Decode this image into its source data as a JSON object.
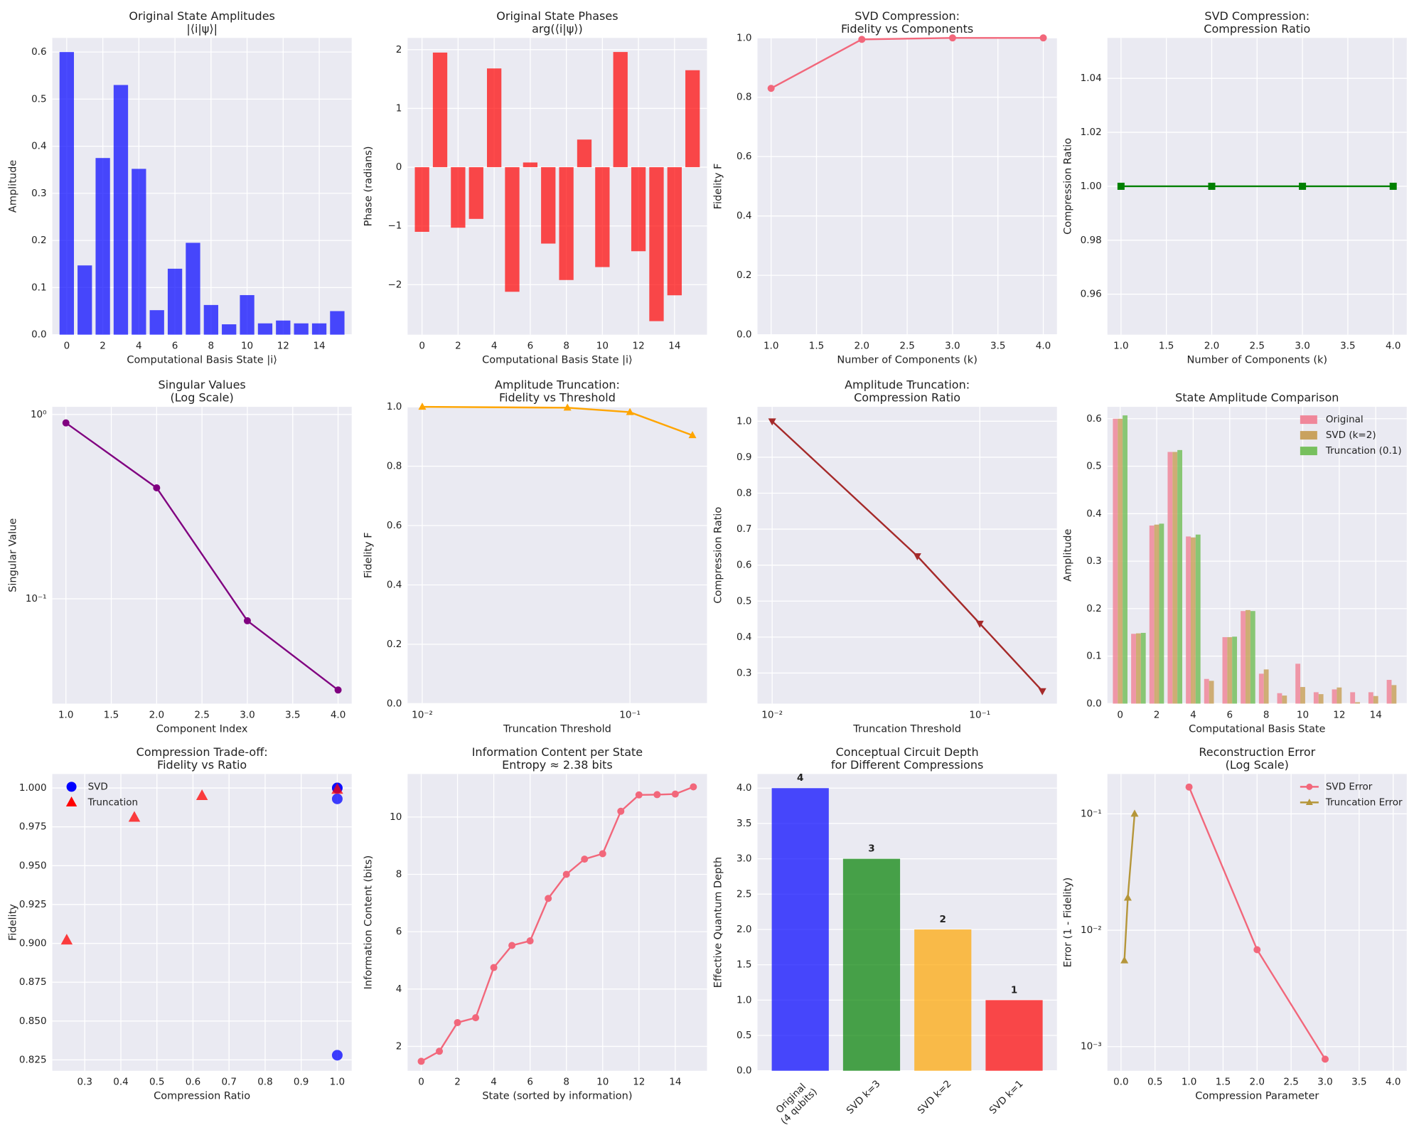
{
  "chart_data": [
    {
      "type": "bar",
      "title": [
        "Original State Amplitudes",
        "|⟨i|ψ⟩|"
      ],
      "xlabel": "Computational Basis State |i⟩",
      "ylabel": "Amplitude",
      "x": [
        0,
        1,
        2,
        3,
        4,
        5,
        6,
        7,
        8,
        9,
        10,
        11,
        12,
        13,
        14,
        15
      ],
      "values": [
        0.6,
        0.147,
        0.375,
        0.53,
        0.352,
        0.052,
        0.14,
        0.195,
        0.063,
        0.022,
        0.084,
        0.024,
        0.03,
        0.024,
        0.024,
        0.05
      ],
      "color": "#0000ff",
      "alpha": 0.7,
      "xlim": [
        -0.8,
        15.8
      ],
      "xticks": [
        0,
        2,
        4,
        6,
        8,
        10,
        12,
        14
      ],
      "ylim": [
        0,
        0.63
      ],
      "yticks": [
        {
          "value": 0,
          "label": "0.0"
        },
        0.1,
        0.2,
        0.3,
        0.4,
        0.5,
        0.6
      ],
      "grid": true
    },
    {
      "type": "bar",
      "title": [
        "Original State Phases",
        "arg(⟨i|ψ⟩)"
      ],
      "xlabel": "Computational Basis State |i⟩",
      "ylabel": "Phase (radians)",
      "x": [
        0,
        1,
        2,
        3,
        4,
        5,
        6,
        7,
        8,
        9,
        10,
        11,
        12,
        13,
        14,
        15
      ],
      "values": [
        -1.1,
        1.95,
        -1.03,
        -0.88,
        1.68,
        -2.12,
        0.08,
        -1.3,
        -1.92,
        0.47,
        -1.7,
        1.96,
        -1.43,
        -2.62,
        -2.18,
        1.65
      ],
      "color": "#ff0000",
      "alpha": 0.7,
      "xlim": [
        -0.8,
        15.8
      ],
      "xticks": [
        0,
        2,
        4,
        6,
        8,
        10,
        12,
        14
      ],
      "ylim": [
        -2.85,
        2.2
      ],
      "yticks": [
        {
          "value": -2,
          "label": "−2"
        },
        {
          "value": -1,
          "label": "−1"
        },
        0,
        1,
        2
      ],
      "grid": true
    },
    {
      "type": "line",
      "title": [
        "SVD Compression:",
        "Fidelity vs Components"
      ],
      "xlabel": "Number of Components (k)",
      "ylabel": "Fidelity F",
      "series": [
        {
          "color": "#f2677b",
          "marker": "o",
          "x": [
            1,
            2,
            3,
            4
          ],
          "values": [
            0.83,
            0.995,
            1.0,
            1.0
          ]
        }
      ],
      "xlim": [
        0.85,
        4.15
      ],
      "xticks": [
        {
          "value": 1,
          "label": "1.0"
        },
        1.5,
        {
          "value": 2,
          "label": "2.0"
        },
        2.5,
        {
          "value": 3,
          "label": "3.0"
        },
        3.5,
        {
          "value": 4,
          "label": "4.0"
        }
      ],
      "ylim": [
        0,
        1.0
      ],
      "yticks": [
        {
          "value": 0,
          "label": "0.0"
        },
        0.2,
        0.4,
        0.6,
        0.8,
        {
          "value": 1,
          "label": "1.0"
        }
      ],
      "grid": true
    },
    {
      "type": "line",
      "title": [
        "SVD Compression:",
        "Compression Ratio"
      ],
      "xlabel": "Number of Components (k)",
      "ylabel": "Compression Ratio",
      "series": [
        {
          "color": "#008000",
          "marker": "s",
          "x": [
            1,
            2,
            3,
            4
          ],
          "values": [
            1,
            1,
            1,
            1
          ]
        }
      ],
      "xlim": [
        0.85,
        4.15
      ],
      "xticks": [
        {
          "value": 1,
          "label": "1.0"
        },
        1.5,
        {
          "value": 2,
          "label": "2.0"
        },
        2.5,
        {
          "value": 3,
          "label": "3.0"
        },
        3.5,
        {
          "value": 4,
          "label": "4.0"
        }
      ],
      "ylim": [
        0.945,
        1.055
      ],
      "yticks": [
        0.96,
        0.98,
        {
          "value": 1,
          "label": "1.00"
        },
        1.02,
        1.04
      ],
      "grid": true
    },
    {
      "type": "line",
      "title": [
        "Singular Values",
        "(Log Scale)"
      ],
      "xlabel": "Component Index",
      "ylabel": "Singular Value",
      "yscale": "log",
      "series": [
        {
          "color": "#800080",
          "marker": "o",
          "x": [
            1,
            2,
            3,
            4
          ],
          "values": [
            0.9,
            0.4,
            0.076,
            0.032
          ]
        }
      ],
      "xlim": [
        0.85,
        4.15
      ],
      "xticks": [
        {
          "value": 1,
          "label": "1.0"
        },
        1.5,
        {
          "value": 2,
          "label": "2.0"
        },
        2.5,
        {
          "value": 3,
          "label": "3.0"
        },
        3.5,
        {
          "value": 4,
          "label": "4.0"
        }
      ],
      "ylim": [
        0.027,
        1.1
      ],
      "yticks": [
        {
          "value": 0.1,
          "label": "10⁻¹"
        },
        {
          "value": 1,
          "label": "10⁰"
        }
      ],
      "grid": true
    },
    {
      "type": "line",
      "title": [
        "Amplitude Truncation:",
        "Fidelity vs Threshold"
      ],
      "xlabel": "Truncation Threshold",
      "ylabel": "Fidelity F",
      "xscale": "log",
      "series": [
        {
          "color": "#ffa500",
          "marker": "^",
          "x": [
            0.01,
            0.05,
            0.1,
            0.2
          ],
          "values": [
            1.0,
            0.997,
            0.982,
            0.904
          ]
        }
      ],
      "xlim": [
        0.0085,
        0.235
      ],
      "xticks": [
        {
          "value": 0.01,
          "label": "10⁻²"
        },
        {
          "value": 0.1,
          "label": "10⁻¹"
        }
      ],
      "ylim": [
        0,
        1.0
      ],
      "yticks": [
        {
          "value": 0,
          "label": "0.0"
        },
        0.2,
        0.4,
        0.6,
        0.8,
        {
          "value": 1,
          "label": "1.0"
        }
      ],
      "grid": true
    },
    {
      "type": "line",
      "title": [
        "Amplitude Truncation:",
        "Compression Ratio"
      ],
      "xlabel": "Truncation Threshold",
      "ylabel": "Compression Ratio",
      "xscale": "log",
      "series": [
        {
          "color": "#a52a2a",
          "marker": "v",
          "x": [
            0.01,
            0.05,
            0.1,
            0.2
          ],
          "values": [
            1.0,
            0.625,
            0.4375,
            0.25
          ]
        }
      ],
      "xlim": [
        0.0085,
        0.235
      ],
      "xticks": [
        {
          "value": 0.01,
          "label": "10⁻²"
        },
        {
          "value": 0.1,
          "label": "10⁻¹"
        }
      ],
      "ylim": [
        0.215,
        1.04
      ],
      "yticks": [
        0.3,
        0.4,
        0.5,
        0.6,
        0.7,
        0.8,
        0.9,
        {
          "value": 1,
          "label": "1.0"
        }
      ],
      "grid": true
    },
    {
      "type": "grouped_bar",
      "title": [
        "State Amplitude Comparison"
      ],
      "xlabel": "Computational Basis State",
      "ylabel": "Amplitude",
      "legend": "upper right",
      "x": [
        0,
        1,
        2,
        3,
        4,
        5,
        6,
        7,
        8,
        9,
        10,
        11,
        12,
        13,
        14,
        15
      ],
      "series": [
        {
          "name": "Original",
          "color": "#f0879a",
          "values": [
            0.6,
            0.147,
            0.375,
            0.53,
            0.352,
            0.052,
            0.14,
            0.195,
            0.063,
            0.022,
            0.084,
            0.024,
            0.03,
            0.024,
            0.024,
            0.05
          ]
        },
        {
          "name": "SVD (k=2)",
          "color": "#c9a25e",
          "values": [
            0.6,
            0.148,
            0.377,
            0.53,
            0.35,
            0.048,
            0.14,
            0.197,
            0.072,
            0.017,
            0.035,
            0.02,
            0.034,
            0.003,
            0.016,
            0.039
          ]
        },
        {
          "name": "Truncation (0.1)",
          "color": "#77c05e",
          "values": [
            0.607,
            0.149,
            0.379,
            0.534,
            0.356,
            0,
            0.141,
            0.195,
            0,
            0,
            0,
            0,
            0,
            0,
            0,
            0
          ]
        }
      ],
      "xlim": [
        -0.7,
        15.7
      ],
      "xticks": [
        0,
        2,
        4,
        6,
        8,
        10,
        12,
        14
      ],
      "ylim": [
        0,
        0.625
      ],
      "yticks": [
        {
          "value": 0,
          "label": "0.0"
        },
        0.1,
        0.2,
        0.3,
        0.4,
        0.5,
        0.6
      ],
      "grid": true
    },
    {
      "type": "scatter",
      "title": [
        "Compression Trade-off:",
        "Fidelity vs Ratio"
      ],
      "xlabel": "Compression Ratio",
      "ylabel": "Fidelity",
      "legend": "upper left",
      "series": [
        {
          "name": "SVD",
          "color": "#0000ff",
          "marker": "o",
          "x": [
            1,
            1,
            1,
            1
          ],
          "values": [
            0.828,
            0.993,
            1.0,
            1.0
          ]
        },
        {
          "name": "Truncation",
          "color": "#ff0000",
          "marker": "^",
          "x": [
            1.0,
            0.625,
            0.4375,
            0.25
          ],
          "values": [
            0.999,
            0.995,
            0.981,
            0.902
          ]
        }
      ],
      "xlim": [
        0.21,
        1.04
      ],
      "xticks": [
        0.3,
        0.4,
        0.5,
        0.6,
        0.7,
        0.8,
        0.9,
        {
          "value": 1,
          "label": "1.0"
        }
      ],
      "ylim": [
        0.818,
        1.009
      ],
      "yticks": [
        0.825,
        {
          "value": 0.85,
          "label": "0.850"
        },
        0.875,
        {
          "value": 0.9,
          "label": "0.900"
        },
        0.925,
        {
          "value": 0.95,
          "label": "0.950"
        },
        0.975,
        {
          "value": 1,
          "label": "1.000"
        }
      ],
      "grid": true
    },
    {
      "type": "line",
      "title": [
        "Information Content per State",
        "Entropy ≈ 2.38 bits"
      ],
      "xlabel": "State (sorted by information)",
      "ylabel": "Information Content (bits)",
      "series": [
        {
          "color": "#f2677b",
          "marker": "o",
          "x": [
            0,
            1,
            2,
            3,
            4,
            5,
            6,
            7,
            8,
            9,
            10,
            11,
            12,
            13,
            14,
            15
          ],
          "values": [
            1.48,
            1.83,
            2.83,
            3.0,
            4.75,
            5.52,
            5.68,
            7.16,
            8.0,
            8.53,
            8.72,
            10.2,
            10.77,
            10.78,
            10.8,
            11.05
          ]
        }
      ],
      "xlim": [
        -0.75,
        15.75
      ],
      "xticks": [
        0,
        2,
        4,
        6,
        8,
        10,
        12,
        14
      ],
      "ylim": [
        1.15,
        11.5
      ],
      "yticks": [
        2,
        4,
        6,
        8,
        10
      ],
      "grid": true
    },
    {
      "type": "bar",
      "title": [
        "Conceptual Circuit Depth",
        "for Different Compressions"
      ],
      "ylabel": "Effective Quantum Depth",
      "categories": [
        "Original\n(4 qubits)",
        "SVD k=3",
        "SVD k=2",
        "SVD k=1"
      ],
      "values": [
        4,
        3,
        2,
        1
      ],
      "colors": [
        "#0000ff",
        "#008000",
        "#ffa500",
        "#ff0000"
      ],
      "alpha": 0.7,
      "value_labels_shown": true,
      "xlim": [
        -0.6,
        3.6
      ],
      "ylim": [
        0,
        4.2
      ],
      "yticks": [
        {
          "value": 0,
          "label": "0.0"
        },
        0.5,
        {
          "value": 1,
          "label": "1.0"
        },
        1.5,
        {
          "value": 2,
          "label": "2.0"
        },
        2.5,
        {
          "value": 3,
          "label": "3.0"
        },
        3.5,
        {
          "value": 4,
          "label": "4.0"
        }
      ],
      "grid": true
    },
    {
      "type": "line",
      "title": [
        "Reconstruction Error",
        "(Log Scale)"
      ],
      "xlabel": "Compression Parameter",
      "ylabel": "Error (1 - Fidelity)",
      "yscale": "log",
      "legend": "upper right",
      "series": [
        {
          "name": "SVD Error",
          "color": "#f2677b",
          "marker": "o",
          "x": [
            1,
            2,
            3,
            4
          ],
          "values": [
            0.17,
            0.0068,
            0.00078,
            null
          ]
        },
        {
          "name": "Truncation Error",
          "color": "#b5963a",
          "marker": "^",
          "x": [
            0.01,
            0.05,
            0.1,
            0.2
          ],
          "values": [
            null,
            0.0055,
            0.019,
            0.1
          ]
        }
      ],
      "xlim": [
        -0.2,
        4.2
      ],
      "xticks": [
        {
          "value": 0,
          "label": "0.0"
        },
        0.5,
        {
          "value": 1,
          "label": "1.0"
        },
        1.5,
        {
          "value": 2,
          "label": "2.0"
        },
        2.5,
        {
          "value": 3,
          "label": "3.0"
        },
        3.5,
        {
          "value": 4,
          "label": "4.0"
        }
      ],
      "ylim": [
        0.00062,
        0.22
      ],
      "yticks": [
        {
          "value": 0.001,
          "label": "10⁻³"
        },
        {
          "value": 0.01,
          "label": "10⁻²"
        },
        {
          "value": 0.1,
          "label": "10⁻¹"
        }
      ],
      "grid": true
    }
  ]
}
